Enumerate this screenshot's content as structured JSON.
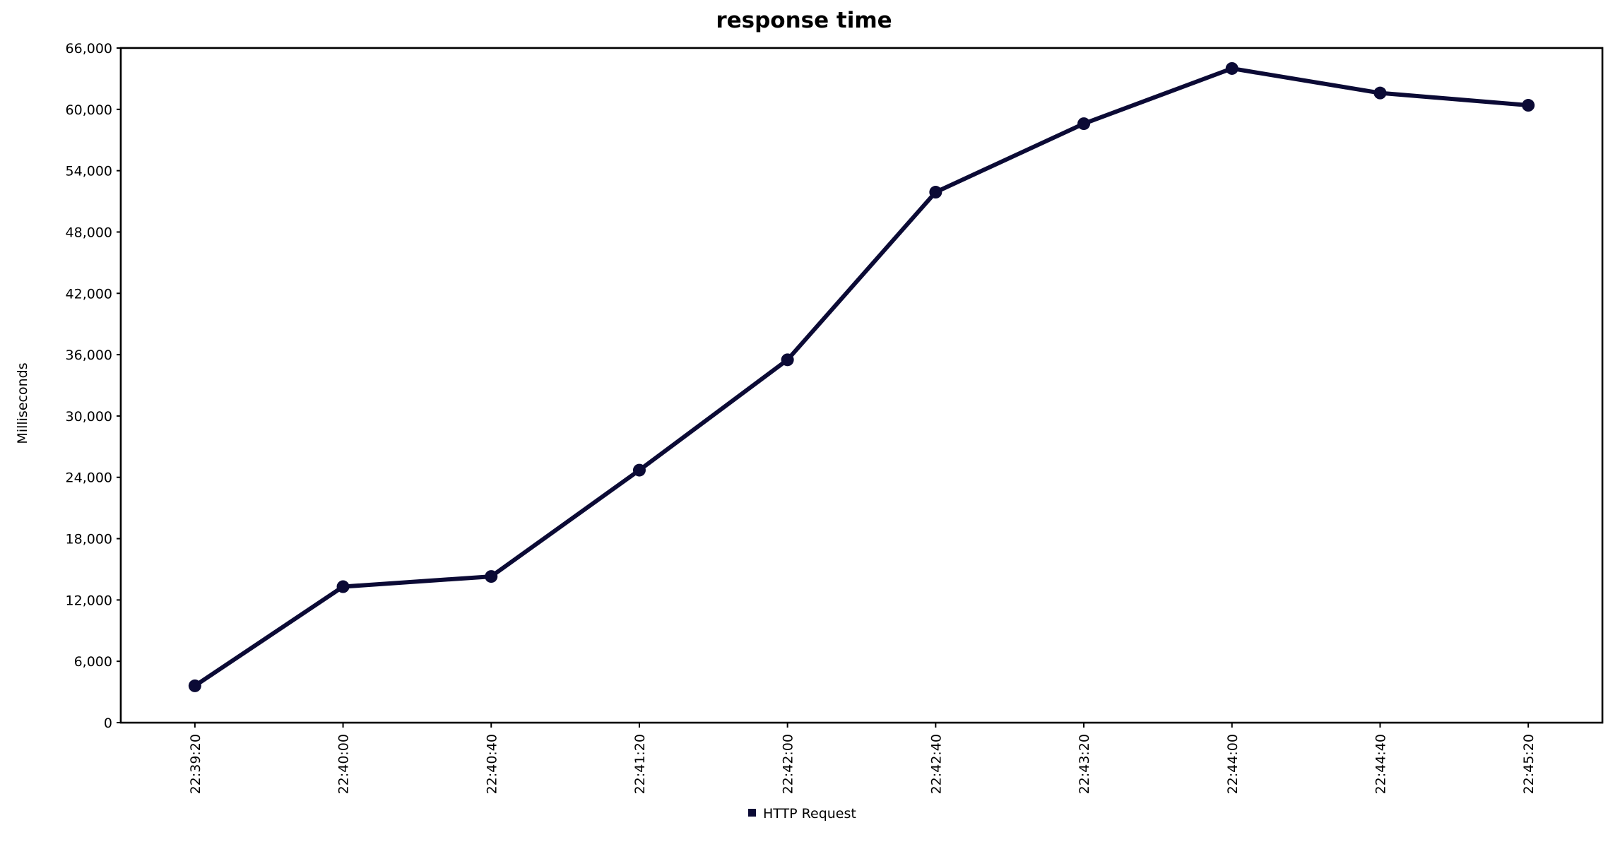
{
  "colors": {
    "series": "#0b0a35",
    "grid": "#c0c0c0",
    "background": "#ffffff"
  },
  "chart_data": {
    "type": "line",
    "title": "response time",
    "xlabel": "",
    "ylabel": "Milliseconds",
    "x": [
      "22:39:20",
      "22:40:00",
      "22:40:40",
      "22:41:20",
      "22:42:00",
      "22:42:40",
      "22:43:20",
      "22:44:00",
      "22:44:40",
      "22:45:20"
    ],
    "series": [
      {
        "name": "HTTP Request",
        "values": [
          3600,
          13300,
          14300,
          24700,
          35500,
          51900,
          58600,
          64000,
          61600,
          60400
        ]
      }
    ],
    "ylim": [
      0,
      66000
    ],
    "yticks": [
      "0",
      "6,000",
      "12,000",
      "18,000",
      "24,000",
      "30,000",
      "36,000",
      "42,000",
      "48,000",
      "54,000",
      "60,000",
      "66,000"
    ],
    "ytick_values": [
      0,
      6000,
      12000,
      18000,
      24000,
      30000,
      36000,
      42000,
      48000,
      54000,
      60000,
      66000
    ],
    "grid": true,
    "legend_position": "bottom-center"
  }
}
